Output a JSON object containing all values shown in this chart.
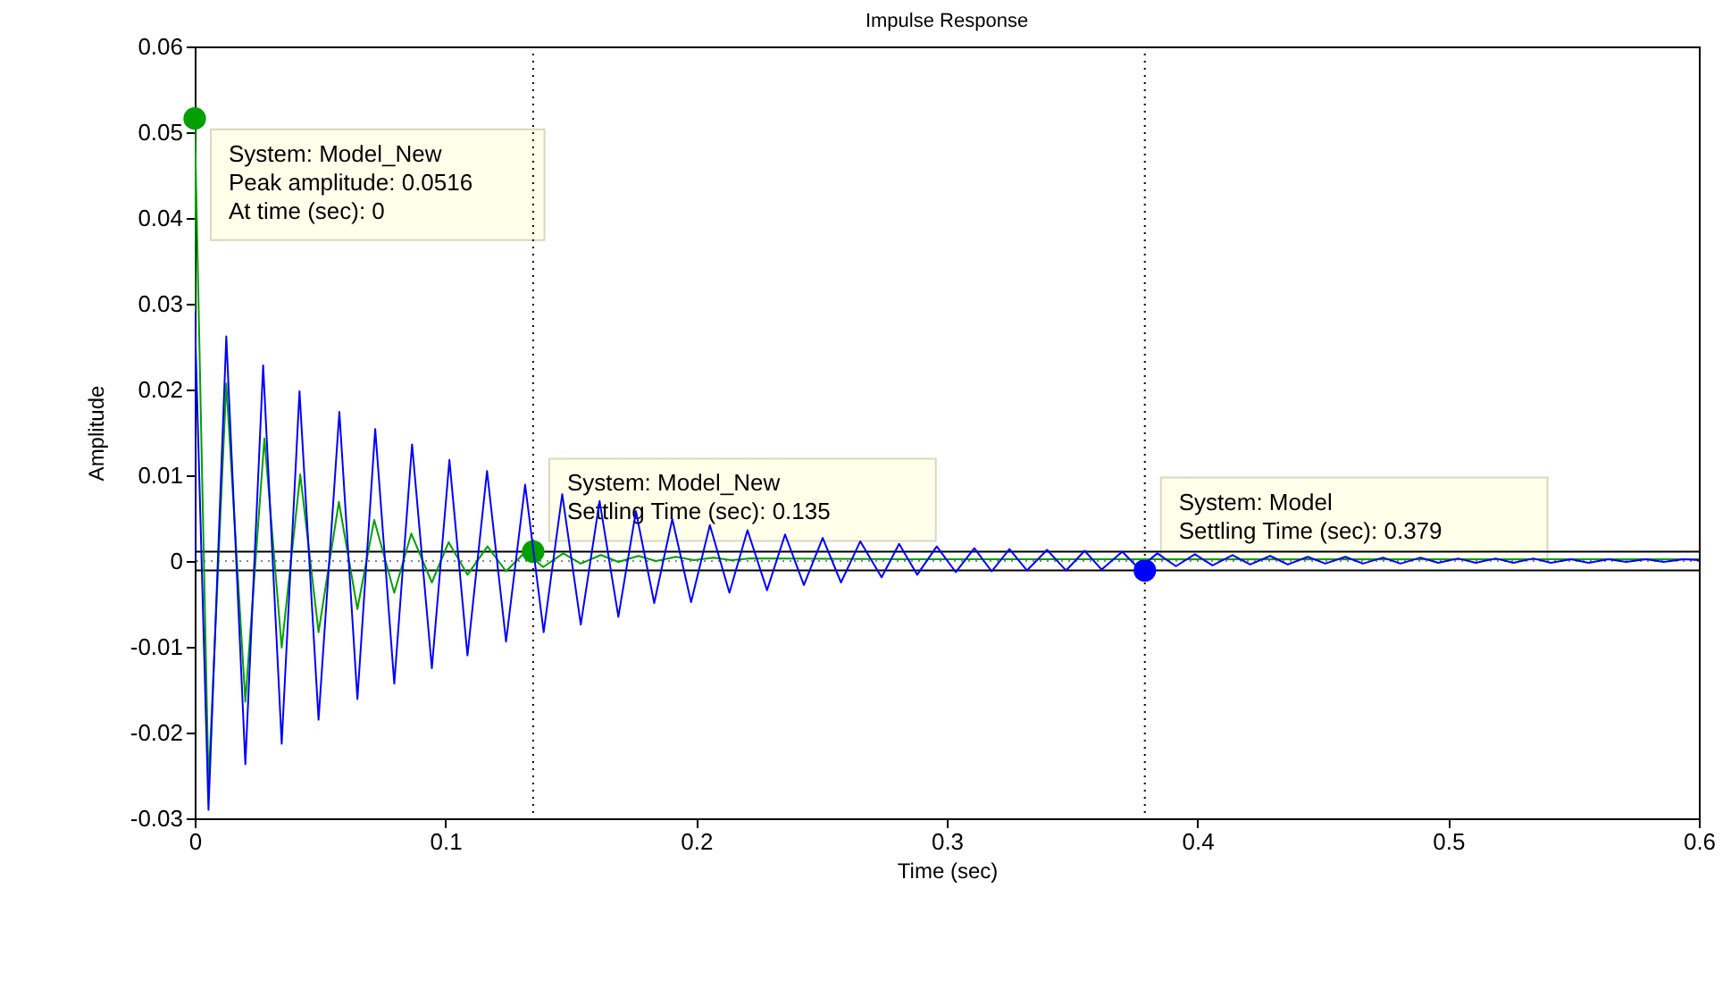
{
  "chart_data": {
    "type": "line",
    "title": "Impulse Response",
    "xlabel": "Time (sec)",
    "ylabel": "Amplitude",
    "xlim": [
      0,
      0.6
    ],
    "xticks": [
      0,
      0.1,
      0.2,
      0.3,
      0.4,
      0.5,
      0.6
    ],
    "ylim": [
      -0.03,
      0.06
    ],
    "yticks": [
      -0.03,
      -0.02,
      -0.01,
      0,
      0.01,
      0.02,
      0.03,
      0.04,
      0.05,
      0.06
    ],
    "grid": false,
    "line_style": "solid",
    "marker": "none",
    "series": [
      {
        "color": "#0000ff",
        "x": [
          0,
          0,
          0.0055,
          0.0126,
          0.0202,
          0.0273,
          0.0347,
          0.0418,
          0.0494,
          0.0577,
          0.0649,
          0.072,
          0.0796,
          0.0867,
          0.0946,
          0.1016,
          0.1088,
          0.1166,
          0.1242,
          0.1318,
          0.1392,
          0.1466,
          0.154,
          0.1615,
          0.169,
          0.176,
          0.1833,
          0.1905,
          0.198,
          0.2055,
          0.2133,
          0.2205,
          0.2283,
          0.2355,
          0.243,
          0.2505,
          0.2578,
          0.2655,
          0.274,
          0.281,
          0.2882,
          0.296,
          0.3036,
          0.311,
          0.3179,
          0.325,
          0.332,
          0.34,
          0.3476,
          0.355,
          0.3618,
          0.37,
          0.3766,
          0.384,
          0.3914,
          0.399,
          0.406,
          0.414,
          0.421,
          0.429,
          0.436,
          0.444,
          0.451,
          0.459,
          0.466,
          0.474,
          0.481,
          0.489,
          0.496,
          0.504,
          0.511,
          0.519,
          0.526,
          0.534,
          0.541,
          0.549,
          0.556,
          0.564,
          0.571,
          0.579,
          0.586,
          0.594,
          0.6
        ],
        "values": [
          0,
          0.029,
          -0.029,
          0.0262,
          -0.0237,
          0.0228,
          -0.0213,
          0.0198,
          -0.0185,
          0.0174,
          -0.0161,
          0.0154,
          -0.0143,
          0.0136,
          -0.0125,
          0.0118,
          -0.011,
          0.0105,
          -0.0094,
          0.0089,
          -0.0083,
          0.0078,
          -0.0074,
          0.007,
          -0.0065,
          0.0058,
          -0.0049,
          0.0049,
          -0.0048,
          0.0042,
          -0.0037,
          0.0036,
          -0.0034,
          0.0031,
          -0.0028,
          0.0027,
          -0.0025,
          0.0023,
          -0.0019,
          0.002,
          -0.0016,
          0.0017,
          -0.0013,
          0.0015,
          -0.0012,
          0.0014,
          -0.0011,
          0.0013,
          -0.0011,
          0.0012,
          -0.001,
          0.0011,
          -0.0009,
          0.0009,
          -0.0006,
          0.0008,
          -0.0005,
          0.0007,
          -0.0004,
          0.0006,
          -0.0004,
          0.0005,
          -0.0003,
          0.0005,
          -0.0003,
          0.0004,
          -0.0003,
          0.0004,
          -0.0002,
          0.0003,
          -0.0002,
          0.0003,
          -0.0002,
          0.0003,
          -0.0002,
          0.0002,
          -0.0002,
          0.0002,
          -0.0001,
          0.0002,
          -0.0001,
          0.0002,
          0.0001
        ]
      },
      {
        "color": "#00a000",
        "x": [
          0,
          0,
          0.0055,
          0.0126,
          0.0202,
          0.0278,
          0.0347,
          0.0421,
          0.0494,
          0.0575,
          0.0649,
          0.0716,
          0.0796,
          0.0864,
          0.0946,
          0.1013,
          0.1088,
          0.1168,
          0.1242,
          0.132,
          0.139,
          0.147,
          0.154,
          0.162,
          0.169,
          0.177,
          0.184,
          0.192,
          0.199,
          0.207,
          0.214,
          0.222,
          0.3,
          0.6
        ],
        "values": [
          0,
          0.0516,
          -0.026,
          0.0207,
          -0.0164,
          0.0143,
          -0.0101,
          0.0101,
          -0.0083,
          0.0069,
          -0.0056,
          0.0048,
          -0.0037,
          0.0032,
          -0.0025,
          0.0022,
          -0.0016,
          0.0017,
          -0.0012,
          0.0011,
          -0.0007,
          0.0009,
          -0.0003,
          0.0007,
          -0.0001,
          0.0006,
          0,
          0.0005,
          0.0001,
          0.0004,
          0.0001,
          0.0003,
          0.0002,
          0.0002
        ]
      },
      {
        "type": "scatter",
        "marker": "circle",
        "color": "#00a000",
        "x": [
          0,
          0.135
        ],
        "values": [
          0.0516,
          0.0011
        ]
      },
      {
        "type": "scatter",
        "marker": "circle",
        "color": "#0000ff",
        "x": [
          0.379
        ],
        "values": [
          -0.0011
        ]
      }
    ],
    "ref_lines": [
      {
        "axis": "y",
        "value": 0.0011,
        "color": "#000000",
        "line_style": "solid"
      },
      {
        "axis": "y",
        "value": -0.0011,
        "color": "#000000",
        "line_style": "solid"
      },
      {
        "axis": "y",
        "value": 0,
        "color": "#888888",
        "line_style": "dotted"
      },
      {
        "axis": "x",
        "value": 0.135,
        "color": "#000000",
        "line_style": "dotted"
      },
      {
        "axis": "x",
        "value": 0.379,
        "color": "#000000",
        "line_style": "dotted"
      }
    ],
    "annotations": [
      {
        "text": "System: Model_New\nPeak amplitude: 0.0516\nAt time (sec): 0",
        "x": 0,
        "y": 0.0516
      },
      {
        "text": "System: Model_New\nSettling Time (sec): 0.135",
        "x": 0.135,
        "y": 0.0011
      },
      {
        "text": "System: Model\nSettling Time (sec): 0.379",
        "x": 0.379,
        "y": -0.0011
      }
    ]
  }
}
